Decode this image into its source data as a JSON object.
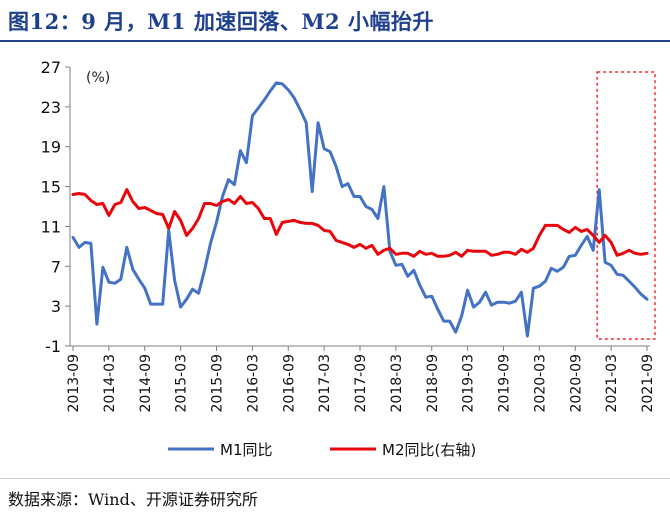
{
  "header": {
    "title": "图12：9 月，M1 加速回落、M2 小幅抬升"
  },
  "footer": {
    "source": "数据来源：Wind、开源证券研究所"
  },
  "colors": {
    "m1": "#4472c4",
    "m2": "#e8050c",
    "highlight": "#e8050c",
    "title": "#1f3f8f"
  },
  "chart_data": {
    "type": "line",
    "unit_label": "(%)",
    "xlabel": "",
    "ylabel": "",
    "ylim": [
      -1,
      27
    ],
    "yticks": [
      -1,
      3,
      7,
      11,
      15,
      19,
      23,
      27
    ],
    "xticks": [
      "2013-09",
      "2014-03",
      "2014-09",
      "2015-03",
      "2015-09",
      "2016-03",
      "2016-09",
      "2017-03",
      "2017-09",
      "2018-03",
      "2018-09",
      "2019-03",
      "2019-09",
      "2020-03",
      "2020-09",
      "2021-03",
      "2021-09"
    ],
    "grid": false,
    "legend_position": "bottom",
    "highlight_box": {
      "from": "2021-02",
      "to": "2021-09"
    },
    "x": [
      "2013-09",
      "2013-10",
      "2013-11",
      "2013-12",
      "2014-01",
      "2014-02",
      "2014-03",
      "2014-04",
      "2014-05",
      "2014-06",
      "2014-07",
      "2014-08",
      "2014-09",
      "2014-10",
      "2014-11",
      "2014-12",
      "2015-01",
      "2015-02",
      "2015-03",
      "2015-04",
      "2015-05",
      "2015-06",
      "2015-07",
      "2015-08",
      "2015-09",
      "2015-10",
      "2015-11",
      "2015-12",
      "2016-01",
      "2016-02",
      "2016-03",
      "2016-04",
      "2016-05",
      "2016-06",
      "2016-07",
      "2016-08",
      "2016-09",
      "2016-10",
      "2016-11",
      "2016-12",
      "2017-01",
      "2017-02",
      "2017-03",
      "2017-04",
      "2017-05",
      "2017-06",
      "2017-07",
      "2017-08",
      "2017-09",
      "2017-10",
      "2017-11",
      "2017-12",
      "2018-01",
      "2018-02",
      "2018-03",
      "2018-04",
      "2018-05",
      "2018-06",
      "2018-07",
      "2018-08",
      "2018-09",
      "2018-10",
      "2018-11",
      "2018-12",
      "2019-01",
      "2019-02",
      "2019-03",
      "2019-04",
      "2019-05",
      "2019-06",
      "2019-07",
      "2019-08",
      "2019-09",
      "2019-10",
      "2019-11",
      "2019-12",
      "2020-01",
      "2020-02",
      "2020-03",
      "2020-04",
      "2020-05",
      "2020-06",
      "2020-07",
      "2020-08",
      "2020-09",
      "2020-10",
      "2020-11",
      "2020-12",
      "2021-01",
      "2021-02",
      "2021-03",
      "2021-04",
      "2021-05",
      "2021-06",
      "2021-07",
      "2021-08",
      "2021-09"
    ],
    "series": [
      {
        "name": "M1同比",
        "axis": "left",
        "values": [
          9.9,
          8.9,
          9.4,
          9.3,
          1.2,
          6.9,
          5.4,
          5.3,
          5.7,
          8.9,
          6.7,
          5.7,
          4.8,
          3.2,
          3.2,
          3.2,
          10.6,
          5.6,
          2.9,
          3.7,
          4.7,
          4.3,
          6.6,
          9.3,
          11.4,
          14.0,
          15.7,
          15.2,
          18.6,
          17.4,
          22.1,
          22.9,
          23.7,
          24.6,
          25.4,
          25.3,
          24.7,
          23.9,
          22.7,
          21.4,
          14.5,
          21.4,
          18.8,
          18.5,
          17.0,
          15.0,
          15.3,
          14.0,
          14.0,
          13.0,
          12.7,
          11.8,
          15.0,
          8.5,
          7.1,
          7.2,
          6.0,
          6.6,
          5.1,
          3.9,
          4.0,
          2.7,
          1.5,
          1.5,
          0.4,
          2.0,
          4.6,
          2.9,
          3.4,
          4.4,
          3.1,
          3.4,
          3.4,
          3.3,
          3.5,
          4.4,
          0.0,
          4.8,
          5.0,
          5.5,
          6.8,
          6.5,
          6.9,
          8.0,
          8.1,
          9.1,
          10.0,
          8.6,
          14.7,
          7.4,
          7.1,
          6.2,
          6.1,
          5.5,
          4.9,
          4.2,
          3.7
        ]
      },
      {
        "name": "M2同比(右轴)",
        "axis": "right",
        "values": [
          14.2,
          14.3,
          14.2,
          13.6,
          13.2,
          13.3,
          12.1,
          13.2,
          13.4,
          14.7,
          13.5,
          12.8,
          12.9,
          12.6,
          12.3,
          12.2,
          10.8,
          12.5,
          11.6,
          10.1,
          10.8,
          11.8,
          13.3,
          13.3,
          13.1,
          13.5,
          13.7,
          13.3,
          14.0,
          13.3,
          13.4,
          12.8,
          11.8,
          11.8,
          10.2,
          11.4,
          11.5,
          11.6,
          11.4,
          11.3,
          11.3,
          11.1,
          10.6,
          10.5,
          9.6,
          9.4,
          9.2,
          8.9,
          9.2,
          8.8,
          9.1,
          8.2,
          8.6,
          8.8,
          8.2,
          8.3,
          8.3,
          8.0,
          8.5,
          8.2,
          8.3,
          8.0,
          8.0,
          8.1,
          8.4,
          8.0,
          8.6,
          8.5,
          8.5,
          8.5,
          8.1,
          8.2,
          8.4,
          8.4,
          8.2,
          8.7,
          8.4,
          8.8,
          10.1,
          11.1,
          11.1,
          11.1,
          10.7,
          10.4,
          10.9,
          10.5,
          10.7,
          10.1,
          9.4,
          10.1,
          9.4,
          8.1,
          8.3,
          8.6,
          8.3,
          8.2,
          8.3
        ]
      }
    ]
  }
}
